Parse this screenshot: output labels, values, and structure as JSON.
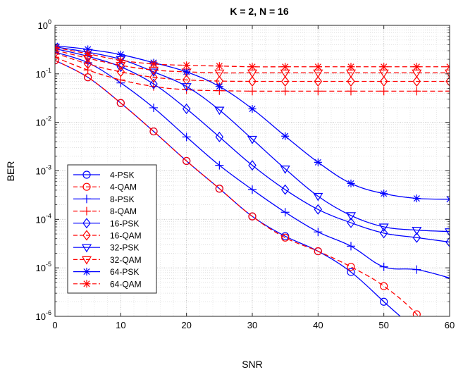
{
  "chart_data": {
    "type": "line",
    "title": "K = 2, N = 16",
    "xlabel": "SNR",
    "ylabel": "BER",
    "xlim": [
      0,
      60
    ],
    "ylim": [
      1e-06,
      1
    ],
    "yscale": "log",
    "grid": true,
    "minor_grid": true,
    "legend_location": "lower-left",
    "xticks": [
      "0",
      "10",
      "20",
      "30",
      "40",
      "50",
      "60"
    ],
    "yticks": [
      {
        "base": "10",
        "exp": "0",
        "value": 1
      },
      {
        "base": "10",
        "exp": "-1",
        "value": 0.1
      },
      {
        "base": "10",
        "exp": "-2",
        "value": 0.01
      },
      {
        "base": "10",
        "exp": "-3",
        "value": 0.001
      },
      {
        "base": "10",
        "exp": "-4",
        "value": 0.0001
      },
      {
        "base": "10",
        "exp": "-5",
        "value": 1e-05
      },
      {
        "base": "10",
        "exp": "-6",
        "value": 1e-06
      }
    ],
    "x": [
      0,
      5,
      10,
      15,
      20,
      25,
      30,
      35,
      40,
      45,
      50,
      55,
      60
    ],
    "series": [
      {
        "name": "4-PSK",
        "color": "#0000ff",
        "dash": "solid",
        "marker": "circle",
        "values": [
          0.19,
          0.085,
          0.025,
          0.0065,
          0.0016,
          0.00043,
          0.000115,
          4.5e-05,
          2.2e-05,
          8.2e-06,
          2e-06,
          4.5e-07,
          null
        ]
      },
      {
        "name": "4-QAM",
        "color": "#ff0000",
        "dash": "dashed",
        "marker": "circle",
        "values": [
          0.19,
          0.085,
          0.025,
          0.0065,
          0.0016,
          0.00043,
          0.000115,
          4.2e-05,
          2.2e-05,
          1.05e-05,
          4.2e-06,
          1.1e-06,
          null
        ]
      },
      {
        "name": "8-PSK",
        "color": "#0000ff",
        "dash": "solid",
        "marker": "plus",
        "values": [
          0.28,
          0.17,
          0.065,
          0.02,
          0.005,
          0.0013,
          0.00041,
          0.00014,
          5.5e-05,
          2.8e-05,
          1.05e-05,
          9.2e-06,
          6.2e-06
        ]
      },
      {
        "name": "8-QAM",
        "color": "#ff0000",
        "dash": "dashed",
        "marker": "plus",
        "values": [
          0.22,
          0.12,
          0.075,
          0.055,
          0.047,
          0.045,
          0.044,
          0.044,
          0.044,
          0.044,
          0.044,
          0.044,
          0.044
        ]
      },
      {
        "name": "16-PSK",
        "color": "#0000ff",
        "dash": "solid",
        "marker": "diamond",
        "values": [
          0.33,
          0.23,
          0.14,
          0.062,
          0.019,
          0.005,
          0.0013,
          0.00041,
          0.00016,
          8.5e-05,
          5.2e-05,
          4.2e-05,
          3.4e-05
        ]
      },
      {
        "name": "16-QAM",
        "color": "#ff0000",
        "dash": "dashed",
        "marker": "diamond",
        "values": [
          0.27,
          0.16,
          0.11,
          0.085,
          0.075,
          0.071,
          0.07,
          0.07,
          0.07,
          0.07,
          0.07,
          0.07,
          0.07
        ]
      },
      {
        "name": "32-PSK",
        "color": "#0000ff",
        "dash": "solid",
        "marker": "triangle-down",
        "values": [
          0.36,
          0.28,
          0.2,
          0.11,
          0.055,
          0.018,
          0.0045,
          0.0011,
          0.0003,
          0.00012,
          7e-05,
          6e-05,
          5.6e-05
        ]
      },
      {
        "name": "32-QAM",
        "color": "#ff0000",
        "dash": "dashed",
        "marker": "triangle-down",
        "values": [
          0.31,
          0.21,
          0.15,
          0.12,
          0.11,
          0.105,
          0.105,
          0.105,
          0.105,
          0.105,
          0.105,
          0.105,
          0.105
        ]
      },
      {
        "name": "64-PSK",
        "color": "#0000ff",
        "dash": "solid",
        "marker": "asterisk",
        "values": [
          0.38,
          0.32,
          0.25,
          0.17,
          0.11,
          0.055,
          0.019,
          0.0052,
          0.0015,
          0.00055,
          0.00034,
          0.00027,
          0.00026
        ]
      },
      {
        "name": "64-QAM",
        "color": "#ff0000",
        "dash": "dashed",
        "marker": "asterisk",
        "values": [
          0.35,
          0.26,
          0.19,
          0.16,
          0.15,
          0.145,
          0.14,
          0.14,
          0.14,
          0.14,
          0.14,
          0.14,
          0.14
        ]
      }
    ]
  }
}
